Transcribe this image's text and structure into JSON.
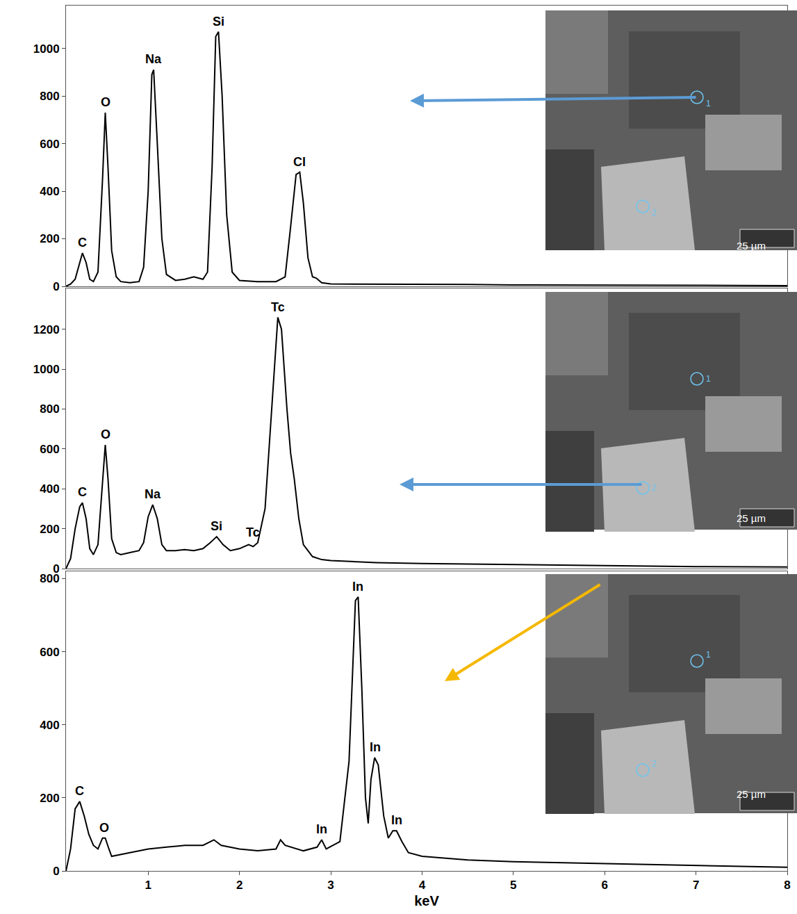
{
  "chart_data": [
    {
      "type": "line",
      "color": "#000000",
      "grid": false,
      "tick_labels": "y",
      "xlim": [
        0.1,
        8
      ],
      "ylim": [
        0,
        1180
      ],
      "yticks": [
        0,
        200,
        400,
        600,
        800,
        1000
      ],
      "x": [
        0.1,
        0.15,
        0.2,
        0.25,
        0.28,
        0.32,
        0.36,
        0.4,
        0.45,
        0.5,
        0.53,
        0.56,
        0.6,
        0.65,
        0.7,
        0.8,
        0.9,
        0.95,
        1.0,
        1.04,
        1.06,
        1.1,
        1.15,
        1.2,
        1.3,
        1.4,
        1.5,
        1.6,
        1.65,
        1.7,
        1.74,
        1.77,
        1.81,
        1.86,
        1.92,
        2.0,
        2.2,
        2.4,
        2.5,
        2.56,
        2.62,
        2.66,
        2.7,
        2.75,
        2.8,
        2.84,
        2.9,
        3.0,
        3.5,
        4.0,
        4.5,
        5.0,
        5.5,
        6.0,
        6.5,
        7.0,
        7.5,
        8.0
      ],
      "values": [
        0,
        10,
        30,
        100,
        140,
        100,
        30,
        20,
        60,
        450,
        730,
        500,
        150,
        40,
        20,
        15,
        20,
        80,
        400,
        890,
        910,
        600,
        200,
        50,
        25,
        30,
        40,
        30,
        60,
        500,
        1050,
        1070,
        800,
        300,
        60,
        25,
        20,
        20,
        40,
        250,
        470,
        480,
        350,
        120,
        40,
        35,
        15,
        10,
        10,
        10,
        8,
        6,
        6,
        5,
        5,
        4,
        4,
        3
      ],
      "annotations": [
        {
          "text": "C",
          "x": 0.28,
          "y": 140
        },
        {
          "text": "O",
          "x": 0.53,
          "y": 730
        },
        {
          "text": "Na",
          "x": 1.06,
          "y": 910
        },
        {
          "text": "Si",
          "x": 1.77,
          "y": 1070
        },
        {
          "text": "Cl",
          "x": 2.66,
          "y": 480
        }
      ],
      "inset": {
        "markers": [
          "1",
          "2"
        ],
        "scale_bar": "25 µm"
      }
    },
    {
      "type": "line",
      "color": "#000000",
      "grid": false,
      "tick_labels": "y",
      "xlim": [
        0.1,
        8
      ],
      "ylim": [
        0,
        1405
      ],
      "yticks": [
        0,
        200,
        400,
        600,
        800,
        1000,
        1200
      ],
      "x": [
        0.1,
        0.15,
        0.2,
        0.25,
        0.28,
        0.32,
        0.36,
        0.4,
        0.45,
        0.5,
        0.53,
        0.56,
        0.6,
        0.65,
        0.7,
        0.8,
        0.9,
        0.95,
        1.0,
        1.05,
        1.1,
        1.15,
        1.2,
        1.3,
        1.4,
        1.5,
        1.6,
        1.68,
        1.75,
        1.82,
        1.9,
        2.0,
        2.1,
        2.15,
        2.2,
        2.28,
        2.35,
        2.42,
        2.46,
        2.52,
        2.56,
        2.6,
        2.65,
        2.7,
        2.8,
        2.9,
        3.0,
        3.5,
        4.0,
        5.0,
        6.0,
        7.0,
        8.0
      ],
      "values": [
        0,
        50,
        200,
        310,
        330,
        250,
        100,
        70,
        120,
        450,
        620,
        450,
        150,
        80,
        70,
        80,
        90,
        130,
        260,
        320,
        250,
        120,
        90,
        90,
        95,
        90,
        100,
        130,
        160,
        120,
        90,
        100,
        120,
        110,
        130,
        300,
        800,
        1260,
        1200,
        800,
        580,
        450,
        250,
        120,
        60,
        45,
        40,
        30,
        25,
        20,
        15,
        10,
        8
      ],
      "annotations": [
        {
          "text": "C",
          "x": 0.28,
          "y": 330
        },
        {
          "text": "O",
          "x": 0.53,
          "y": 620
        },
        {
          "text": "Na",
          "x": 1.05,
          "y": 320
        },
        {
          "text": "Si",
          "x": 1.75,
          "y": 160
        },
        {
          "text": "Tc",
          "x": 2.15,
          "y": 130
        },
        {
          "text": "Tc",
          "x": 2.42,
          "y": 1260
        }
      ],
      "inset": {
        "markers": [
          "1",
          "2"
        ],
        "scale_bar": "25 µm"
      }
    },
    {
      "type": "line",
      "color": "#000000",
      "grid": false,
      "xlim": [
        0.1,
        8
      ],
      "xticks": [
        1,
        2,
        3,
        4,
        5,
        6,
        7,
        8
      ],
      "x_label": "keV",
      "ylim": [
        0,
        820
      ],
      "yticks": [
        0,
        200,
        400,
        600,
        800
      ],
      "x": [
        0.1,
        0.15,
        0.2,
        0.25,
        0.3,
        0.35,
        0.4,
        0.45,
        0.5,
        0.53,
        0.57,
        0.6,
        0.8,
        1.0,
        1.2,
        1.4,
        1.6,
        1.72,
        1.8,
        2.0,
        2.2,
        2.4,
        2.45,
        2.5,
        2.7,
        2.85,
        2.9,
        2.95,
        3.1,
        3.2,
        3.27,
        3.3,
        3.34,
        3.38,
        3.41,
        3.44,
        3.48,
        3.52,
        3.58,
        3.63,
        3.68,
        3.72,
        3.78,
        3.85,
        4.0,
        4.5,
        5.0,
        6.0,
        7.0,
        8.0
      ],
      "values": [
        0,
        60,
        170,
        190,
        150,
        100,
        70,
        60,
        90,
        90,
        60,
        40,
        50,
        60,
        65,
        70,
        70,
        85,
        70,
        60,
        55,
        60,
        85,
        70,
        55,
        65,
        85,
        60,
        80,
        300,
        740,
        750,
        500,
        200,
        130,
        250,
        310,
        290,
        150,
        90,
        110,
        110,
        80,
        50,
        40,
        30,
        25,
        20,
        15,
        10
      ],
      "annotations": [
        {
          "text": "C",
          "x": 0.25,
          "y": 190
        },
        {
          "text": "O",
          "x": 0.52,
          "y": 90
        },
        {
          "text": "In",
          "x": 2.9,
          "y": 85
        },
        {
          "text": "In",
          "x": 3.3,
          "y": 750
        },
        {
          "text": "In",
          "x": 3.49,
          "y": 310
        },
        {
          "text": "In",
          "x": 3.72,
          "y": 110
        }
      ],
      "inset": {
        "markers": [
          "1",
          "2"
        ],
        "scale_bar": "25 µm"
      }
    }
  ]
}
